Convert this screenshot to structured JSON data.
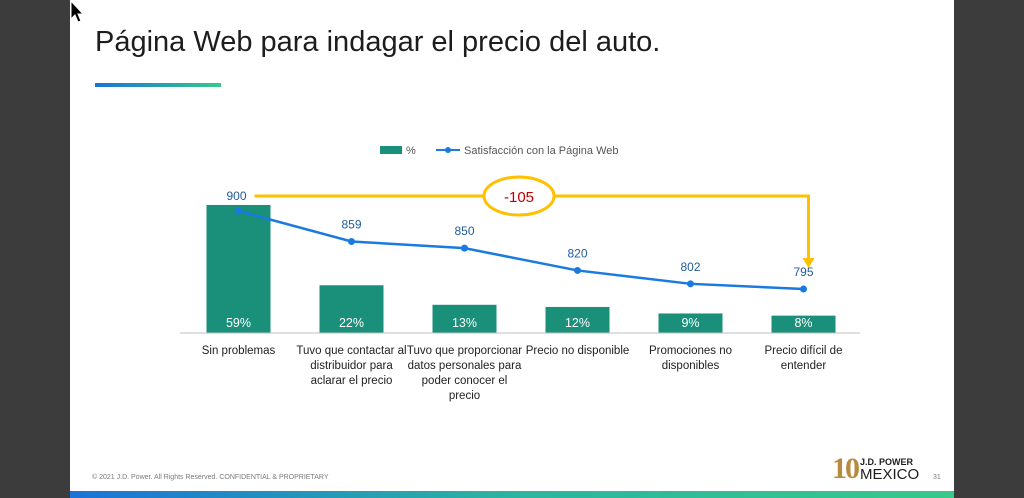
{
  "slide": {
    "title": "Página Web para indagar el precio del auto.",
    "footer": "© 2021 J.D. Power. All Rights Reserved. CONFIDENTIAL & PROPRIETARY",
    "page_number": "31",
    "logo": {
      "ten": "10",
      "brand": "J.D. POWER",
      "country": "MEXICO"
    }
  },
  "chart_data": {
    "type": "bar",
    "categories": [
      "Sin problemas",
      "Tuvo que contactar al distribuidor para aclarar el precio",
      "Tuvo que proporcionar datos personales para poder conocer el precio",
      "Precio no disponible",
      "Promociones no disponibles",
      "Precio difícil de entender"
    ],
    "series": [
      {
        "name": "%",
        "kind": "bar",
        "values": [
          59,
          22,
          13,
          12,
          9,
          8
        ],
        "labels": [
          "59%",
          "22%",
          "13%",
          "12%",
          "9%",
          "8%"
        ],
        "color": "#1a8f7a"
      },
      {
        "name": "Satisfacción con la Página Web",
        "kind": "line",
        "values": [
          900,
          859,
          850,
          820,
          802,
          795
        ],
        "labels": [
          "900",
          "859",
          "850",
          "820",
          "802",
          "795"
        ],
        "color": "#1a7ae0"
      }
    ],
    "annotation": {
      "text": "-105",
      "color": "#ffc000",
      "text_color": "#c00000"
    },
    "legend": "top-center",
    "grid": false
  }
}
